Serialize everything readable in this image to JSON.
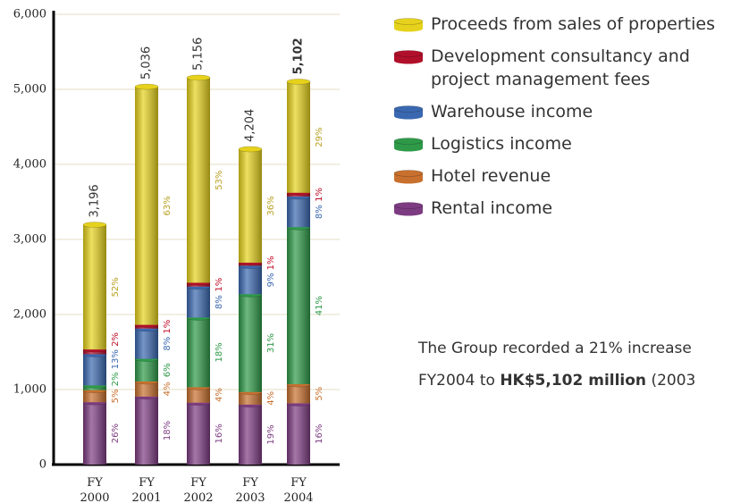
{
  "chart_data": {
    "type": "stacked_bar",
    "categories": [
      "FY 2000",
      "FY 2001",
      "FY 2002",
      "FY 2003",
      "FY 2004"
    ],
    "total_labels": [
      "3,196",
      "5,036",
      "5,156",
      "4,204",
      "5,102"
    ],
    "series": [
      {
        "name": "Rental income",
        "color": "#7d3c82",
        "label_color": "#7d3c82",
        "values": [
          831,
          906,
          825,
          799,
          816
        ],
        "value_labels": [
          "26%",
          "18%",
          "16%",
          "19%",
          "16%"
        ]
      },
      {
        "name": "Hotel revenue",
        "color": "#c8702e",
        "label_color": "#c8702e",
        "values": [
          160,
          201,
          206,
          168,
          255
        ],
        "value_labels": [
          "5%",
          "4%",
          "4%",
          "4%",
          "5%"
        ]
      },
      {
        "name": "Logistics income",
        "color": "#2e9a48",
        "label_color": "#2e9a48",
        "values": [
          64,
          302,
          928,
          1303,
          2092
        ],
        "value_labels": [
          "2%",
          "6%",
          "18%",
          "31%",
          "41%"
        ]
      },
      {
        "name": "Warehouse income",
        "color": "#3a68b0",
        "label_color": "#3a68b0",
        "values": [
          415,
          403,
          412,
          378,
          408
        ],
        "value_labels": [
          "13%",
          "8%",
          "8%",
          "9%",
          "8%"
        ]
      },
      {
        "name": "Development consultancy and project management fees",
        "color": "#b0102a",
        "label_color": "#c0102a",
        "values": [
          64,
          50,
          52,
          42,
          51
        ],
        "value_labels": [
          "2%",
          "1%",
          "1%",
          "1%",
          "1%"
        ]
      },
      {
        "name": "Proceeds from sales of properties",
        "color": "#e6d21c",
        "label_color": "#b8a020",
        "values": [
          1662,
          3173,
          2733,
          1513,
          1480
        ],
        "value_labels": [
          "52%",
          "63%",
          "53%",
          "36%",
          "29%"
        ]
      }
    ],
    "ylim": [
      0,
      6000
    ],
    "yticks": [
      0,
      {
        "value": 1000,
        "label": "1,000"
      },
      {
        "value": 2000,
        "label": "2,000"
      },
      {
        "value": 3000,
        "label": "3,000"
      },
      {
        "value": 4000,
        "label": "4,000"
      },
      {
        "value": 5000,
        "label": "5,000"
      },
      {
        "value": 6000,
        "label": "6,000"
      }
    ],
    "grid": true
  },
  "caption": {
    "line1": "The Group recorded a 21% increase",
    "line2_start": "FY2004 to ",
    "line2_bold": "HK$5,102 million",
    "line2_end": " (2003"
  }
}
